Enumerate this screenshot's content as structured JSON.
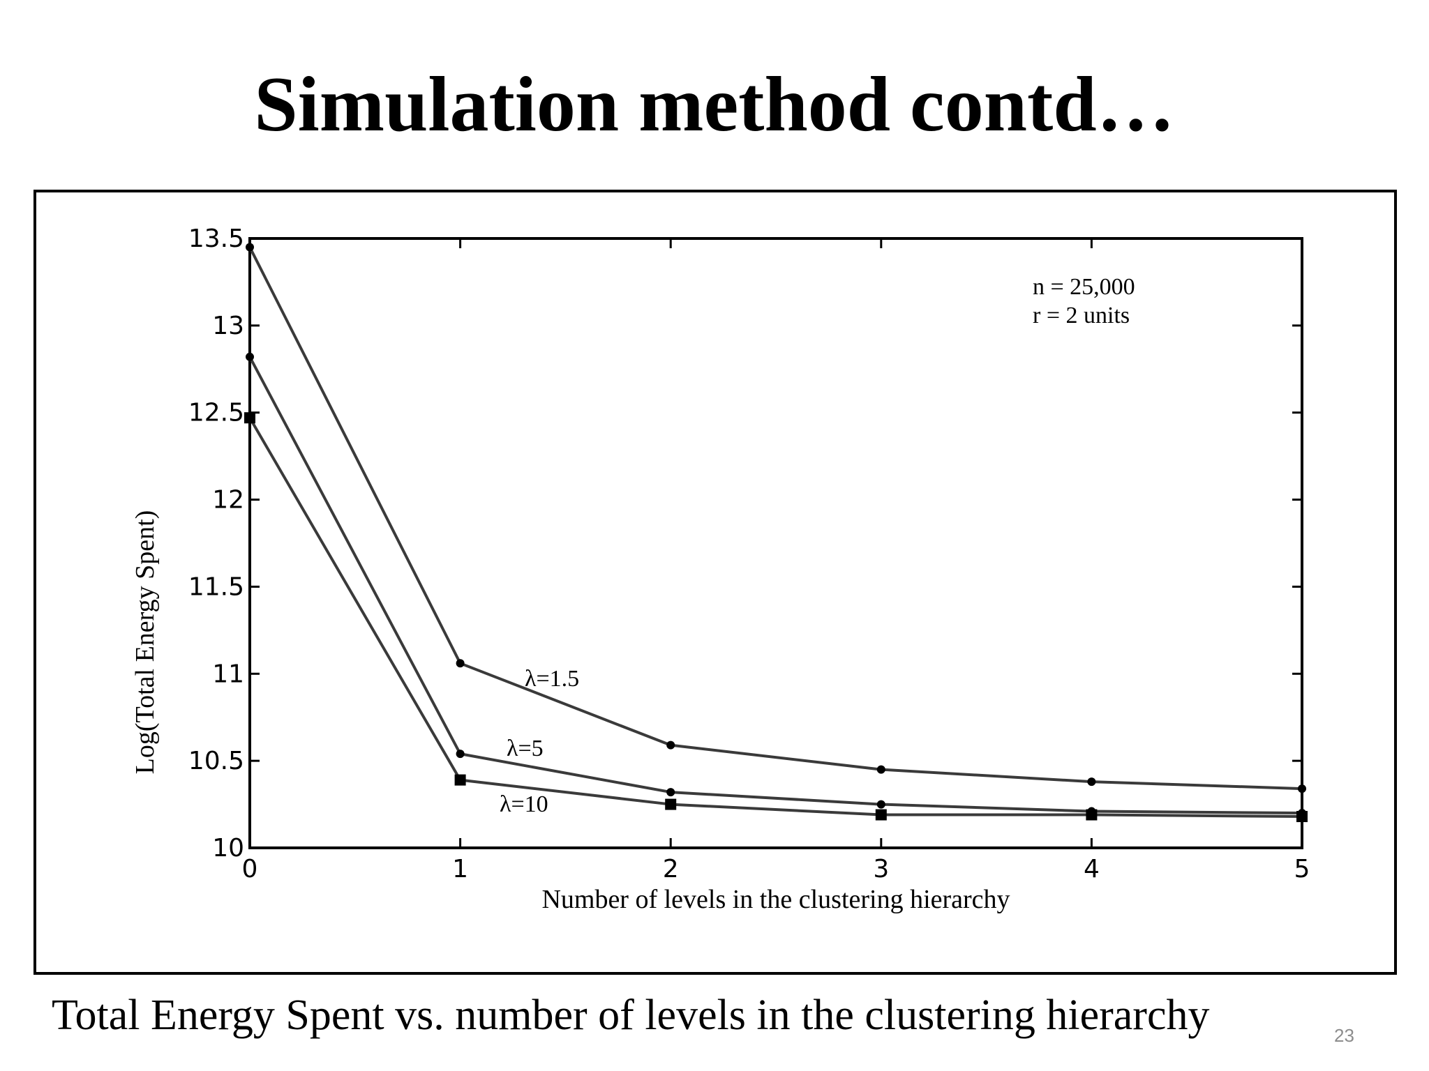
{
  "slide": {
    "title": "Simulation method contd…",
    "caption": "Total Energy Spent vs. number of levels in the clustering hierarchy",
    "slide_number": "23"
  },
  "chart_data": {
    "type": "line",
    "xlabel": "Number of levels  in the clustering hierarchy",
    "ylabel": "Log(Total Energy Spent)",
    "x": [
      0,
      1,
      2,
      3,
      4,
      5
    ],
    "xlim": [
      0,
      5
    ],
    "ylim": [
      10,
      13.5
    ],
    "xticks": [
      "0",
      "1",
      "2",
      "3",
      "4",
      "5"
    ],
    "yticks": [
      "10",
      "10.5",
      "11",
      "11.5",
      "12",
      "12.5",
      "13",
      "13.5"
    ],
    "grid": false,
    "annotations": [
      "n = 25,000",
      "r = 2 units"
    ],
    "series": [
      {
        "name": "λ=1.5",
        "values": [
          13.45,
          11.06,
          10.59,
          10.45,
          10.38,
          10.34
        ],
        "marker": "dot"
      },
      {
        "name": "λ=5",
        "values": [
          12.82,
          10.54,
          10.32,
          10.25,
          10.21,
          10.2
        ],
        "marker": "dot"
      },
      {
        "name": "λ=10",
        "values": [
          12.47,
          10.39,
          10.25,
          10.19,
          10.19,
          10.18
        ],
        "marker": "square"
      }
    ],
    "colors": {
      "line": "#3a3a3a",
      "marker": "#000000",
      "axes": "#000000"
    }
  }
}
